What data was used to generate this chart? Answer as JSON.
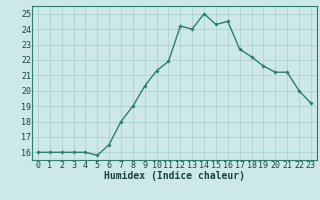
{
  "x": [
    0,
    1,
    2,
    3,
    4,
    5,
    6,
    7,
    8,
    9,
    10,
    11,
    12,
    13,
    14,
    15,
    16,
    17,
    18,
    19,
    20,
    21,
    22,
    23
  ],
  "y": [
    16.0,
    16.0,
    16.0,
    16.0,
    16.0,
    15.8,
    16.5,
    18.0,
    19.0,
    20.3,
    21.3,
    21.9,
    24.2,
    24.0,
    25.0,
    24.3,
    24.5,
    22.7,
    22.2,
    21.6,
    21.2,
    21.2,
    20.0,
    19.2
  ],
  "xlabel": "Humidex (Indice chaleur)",
  "ylim": [
    15.5,
    25.5
  ],
  "xlim": [
    -0.5,
    23.5
  ],
  "yticks": [
    16,
    17,
    18,
    19,
    20,
    21,
    22,
    23,
    24,
    25
  ],
  "xticks": [
    0,
    1,
    2,
    3,
    4,
    5,
    6,
    7,
    8,
    9,
    10,
    11,
    12,
    13,
    14,
    15,
    16,
    17,
    18,
    19,
    20,
    21,
    22,
    23
  ],
  "line_color": "#2e7d6e",
  "marker": "D",
  "marker_size": 1.8,
  "bg_color": "#cce8e8",
  "grid_major_color": "#aacece",
  "grid_minor_color": "#bbdede",
  "axis_color": "#2e7d6e",
  "text_color": "#1a4040",
  "xlabel_fontsize": 7,
  "tick_fontsize": 6,
  "linewidth": 1.0
}
